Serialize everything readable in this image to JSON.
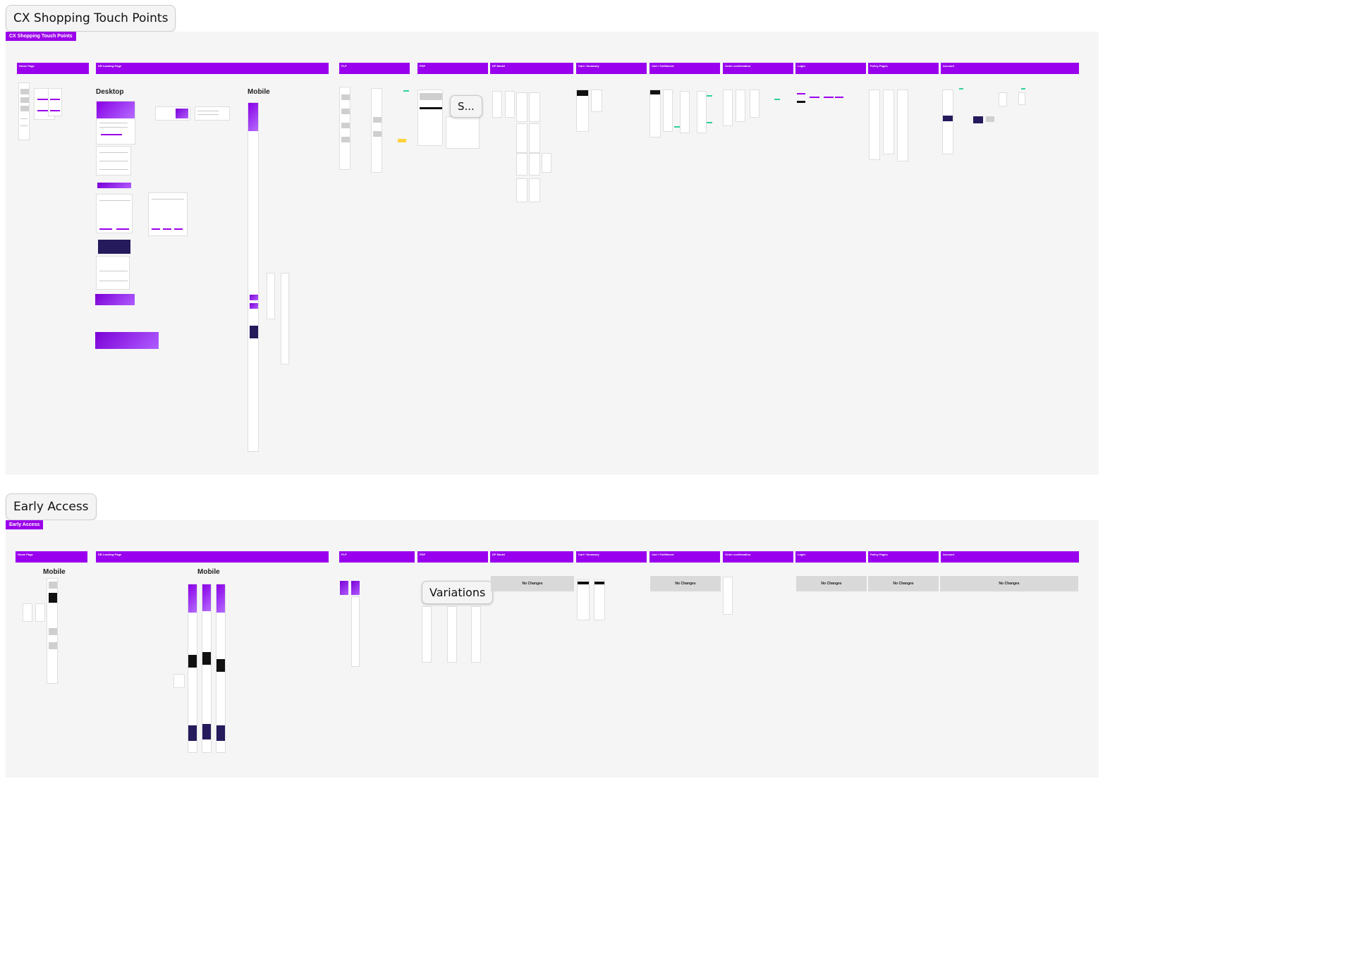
{
  "sections": [
    {
      "label": "CX Shopping Touch Points",
      "tag": "CX Shopping Touch Points",
      "sub_labels": {
        "desktop": "Desktop",
        "mobile": "Mobile"
      },
      "categories": [
        "Home Page",
        "DR Landing Page",
        "PLP",
        "PDP",
        "DP Model",
        "Cart / Summary",
        "Cart / Fulfillment",
        "Order confirmation",
        "Login",
        "Policy Pages",
        "Account"
      ],
      "overlay": "S..."
    },
    {
      "label": "Early Access",
      "tag": "Early Access",
      "sub_labels": {
        "mobile_left": "Mobile",
        "mobile_center": "Mobile"
      },
      "categories": [
        "Home Page",
        "DR Landing Page",
        "PLP",
        "PDP",
        "DP Model",
        "Cart / Summary",
        "Cart / Fulfillment",
        "Order confirmation",
        "Login",
        "Policy Pages",
        "Account"
      ],
      "overlay": "Variations",
      "no_changes": [
        "No Changes",
        "No Changes",
        "No Changes",
        "No Changes",
        "No Changes"
      ]
    }
  ],
  "colors": {
    "accent": "#9b00ea",
    "board": "#f5f5f5",
    "note": "#2fd0a0"
  }
}
